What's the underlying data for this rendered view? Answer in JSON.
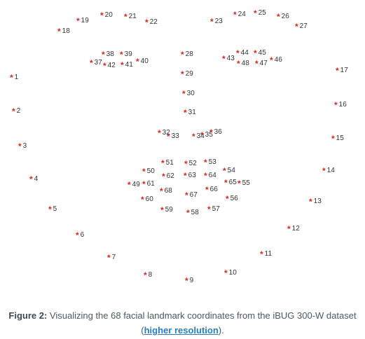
{
  "landmarks": [
    {
      "label": "1"
    },
    {
      "label": "2"
    },
    {
      "label": "3"
    },
    {
      "label": "4"
    },
    {
      "label": "5"
    },
    {
      "label": "6"
    },
    {
      "label": "7"
    },
    {
      "label": "8"
    },
    {
      "label": "9"
    },
    {
      "label": "10"
    },
    {
      "label": "11"
    },
    {
      "label": "12"
    },
    {
      "label": "13"
    },
    {
      "label": "14"
    },
    {
      "label": "15"
    },
    {
      "label": "16"
    },
    {
      "label": "17"
    },
    {
      "label": "18"
    },
    {
      "label": "19"
    },
    {
      "label": "20"
    },
    {
      "label": "21"
    },
    {
      "label": "22"
    },
    {
      "label": "23"
    },
    {
      "label": "24"
    },
    {
      "label": "25"
    },
    {
      "label": "26"
    },
    {
      "label": "27"
    },
    {
      "label": "28"
    },
    {
      "label": "29"
    },
    {
      "label": "30"
    },
    {
      "label": "31"
    },
    {
      "label": "32"
    },
    {
      "label": "33"
    },
    {
      "label": "34"
    },
    {
      "label": "35"
    },
    {
      "label": "36"
    },
    {
      "label": "37"
    },
    {
      "label": "38"
    },
    {
      "label": "39"
    },
    {
      "label": "40"
    },
    {
      "label": "41"
    },
    {
      "label": "42"
    },
    {
      "label": "43"
    },
    {
      "label": "44"
    },
    {
      "label": "45"
    },
    {
      "label": "46"
    },
    {
      "label": "47"
    },
    {
      "label": "48"
    },
    {
      "label": "49"
    },
    {
      "label": "50"
    },
    {
      "label": "51"
    },
    {
      "label": "52"
    },
    {
      "label": "53"
    },
    {
      "label": "54"
    },
    {
      "label": "55"
    },
    {
      "label": "56"
    },
    {
      "label": "57"
    },
    {
      "label": "58"
    },
    {
      "label": "59"
    },
    {
      "label": "60"
    },
    {
      "label": "61"
    },
    {
      "label": "62"
    },
    {
      "label": "63"
    },
    {
      "label": "64"
    },
    {
      "label": "65"
    },
    {
      "label": "66"
    },
    {
      "label": "67"
    },
    {
      "label": "68"
    }
  ],
  "marker_symbol": "*",
  "colors": {
    "marker": "#d8261f",
    "label": "#333333",
    "caption": "#4a5a63",
    "link": "#2a7fbd"
  },
  "caption": {
    "lead": "Figure 2:",
    "text": " Visualizing the 68 facial landmark coordinates from the iBUG 300-W dataset (",
    "link_text": "higher resolution",
    "tail": ")."
  }
}
